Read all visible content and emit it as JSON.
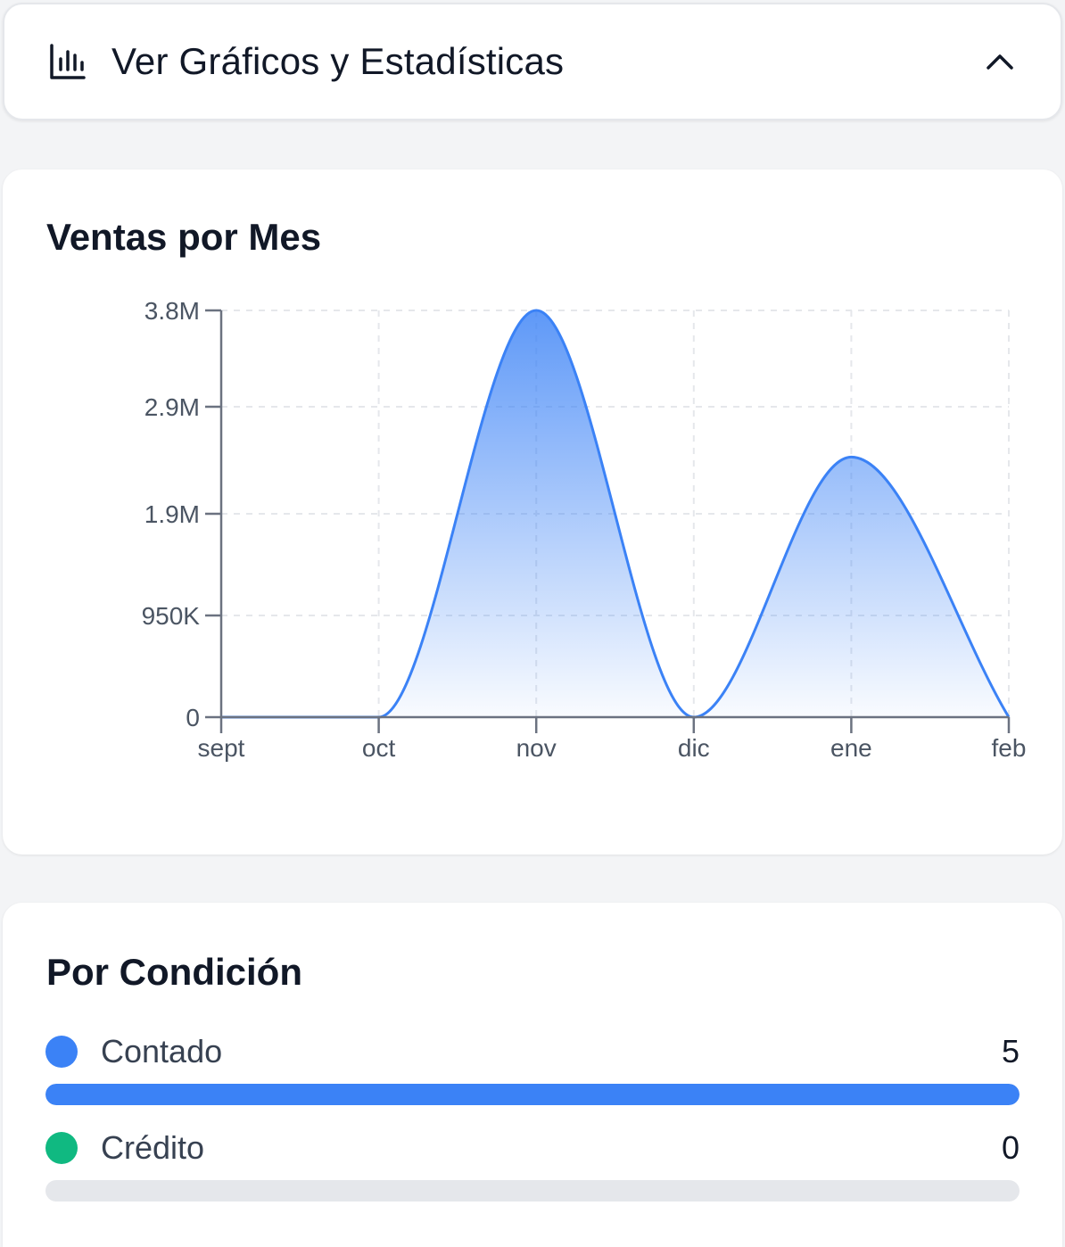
{
  "toggle": {
    "title": "Ver Gráficos y Estadísticas",
    "icon": "bar-chart-icon",
    "chevron": "chevron-up-icon"
  },
  "sales_chart": {
    "title": "Ventas por Mes"
  },
  "chart_data": {
    "type": "area",
    "title": "Ventas por Mes",
    "categories": [
      "sept",
      "oct",
      "nov",
      "dic",
      "ene",
      "feb"
    ],
    "values": [
      0,
      0,
      3800000,
      0,
      2430000,
      0
    ],
    "ylim": [
      0,
      3800000
    ],
    "yticks": [
      0,
      950000,
      1900000,
      2900000,
      3800000
    ],
    "ytick_labels": [
      "0",
      "950K",
      "1.9M",
      "2.9M",
      "3.8M"
    ],
    "grid": true,
    "color": "#3b82f6"
  },
  "conditions": {
    "title": "Por Condición",
    "items": [
      {
        "label": "Contado",
        "count": "5",
        "color": "#3b82f6",
        "fraction": 1.0
      },
      {
        "label": "Crédito",
        "count": "0",
        "color": "#10b981",
        "fraction": 0.0
      }
    ]
  }
}
